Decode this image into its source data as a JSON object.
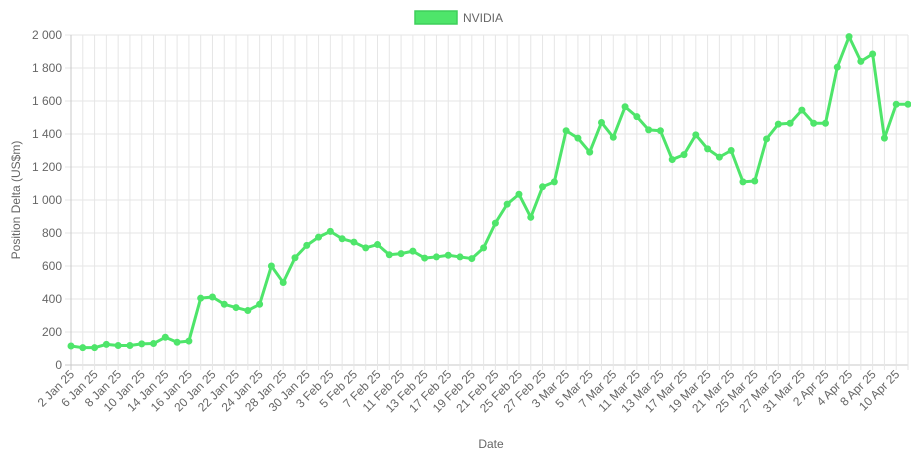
{
  "chart_data": {
    "type": "line",
    "title": "",
    "xlabel": "Date",
    "ylabel": "Position Delta (US$m)",
    "ylim": [
      0,
      2000
    ],
    "yticks": [
      "0",
      "200",
      "400",
      "600",
      "800",
      "1 000",
      "1 200",
      "1 400",
      "1 600",
      "1 800",
      "2 000"
    ],
    "grid": true,
    "legend": "top-center",
    "x_tick_labels": [
      "2 Jan 25",
      "6 Jan 25",
      "8 Jan 25",
      "10 Jan 25",
      "14 Jan 25",
      "16 Jan 25",
      "20 Jan 25",
      "22 Jan 25",
      "24 Jan 25",
      "28 Jan 25",
      "30 Jan 25",
      "3 Feb 25",
      "5 Feb 25",
      "7 Feb 25",
      "11 Feb 25",
      "13 Feb 25",
      "17 Feb 25",
      "19 Feb 25",
      "21 Feb 25",
      "25 Feb 25",
      "27 Feb 25",
      "3 Mar 25",
      "5 Mar 25",
      "7 Mar 25",
      "11 Mar 25",
      "13 Mar 25",
      "17 Mar 25",
      "19 Mar 25",
      "21 Mar 25",
      "25 Mar 25",
      "27 Mar 25",
      "31 Mar 25",
      "2 Apr 25",
      "4 Apr 25",
      "8 Apr 25",
      "10 Apr 25"
    ],
    "series": [
      {
        "name": "NVIDIA",
        "color": "#4ee56a",
        "values": [
          115,
          105,
          105,
          125,
          118,
          118,
          128,
          130,
          168,
          138,
          145,
          405,
          412,
          368,
          348,
          330,
          368,
          600,
          500,
          650,
          725,
          775,
          810,
          765,
          745,
          710,
          730,
          668,
          675,
          690,
          648,
          655,
          665,
          655,
          645,
          710,
          860,
          975,
          1035,
          895,
          1080,
          1110,
          1420,
          1375,
          1290,
          1470,
          1380,
          1565,
          1505,
          1425,
          1420,
          1245,
          1275,
          1395,
          1310,
          1260,
          1300,
          1110,
          1115,
          1370,
          1460,
          1465,
          1545,
          1465,
          1465,
          1805,
          1990,
          1840,
          1885,
          1375,
          1580,
          1580
        ]
      }
    ]
  }
}
